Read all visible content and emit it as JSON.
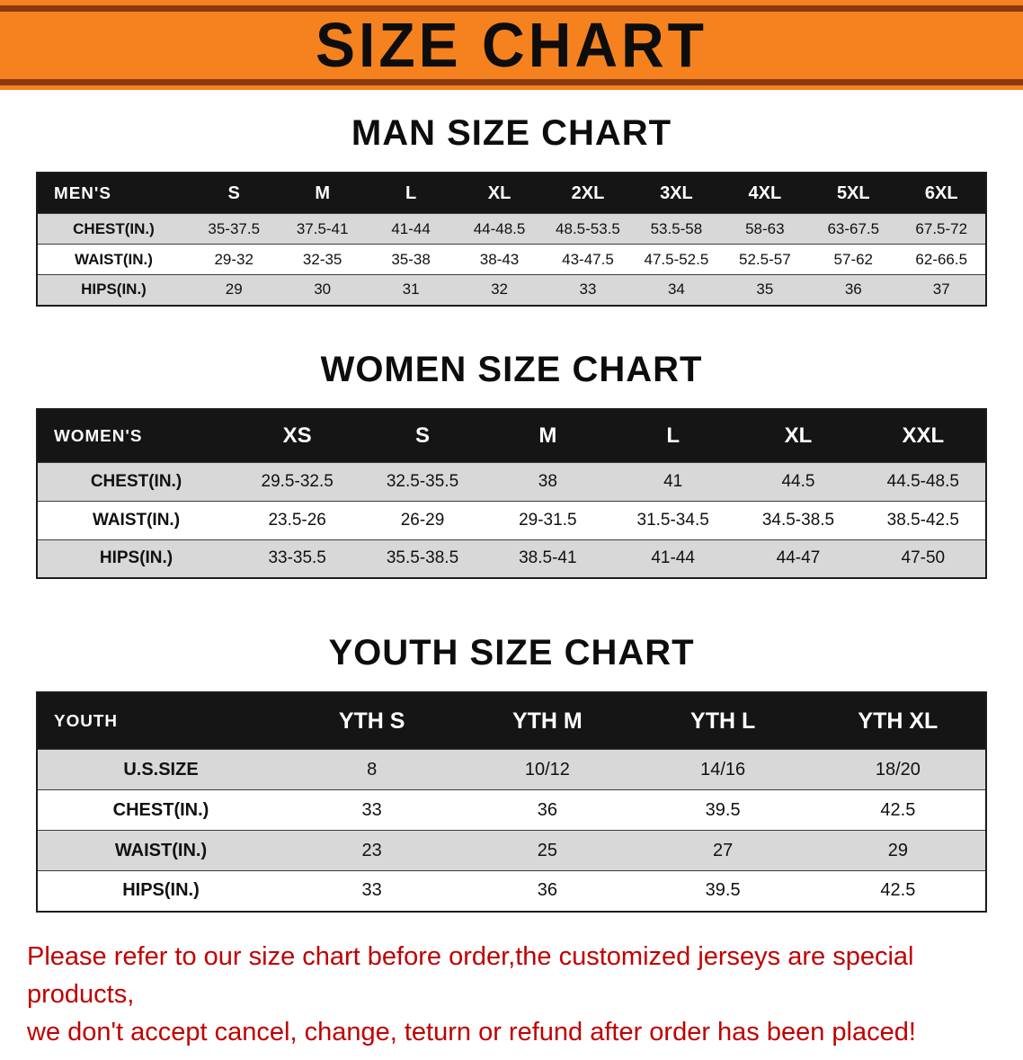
{
  "banner": {
    "title": "SIZE CHART"
  },
  "sections": [
    {
      "id": "men",
      "heading": "MAN SIZE CHART",
      "table": {
        "header": [
          "MEN'S",
          "S",
          "M",
          "L",
          "XL",
          "2XL",
          "3XL",
          "4XL",
          "5XL",
          "6XL"
        ],
        "rows": [
          [
            "CHEST(IN.)",
            "35-37.5",
            "37.5-41",
            "41-44",
            "44-48.5",
            "48.5-53.5",
            "53.5-58",
            "58-63",
            "63-67.5",
            "67.5-72"
          ],
          [
            "WAIST(IN.)",
            "29-32",
            "32-35",
            "35-38",
            "38-43",
            "43-47.5",
            "47.5-52.5",
            "52.5-57",
            "57-62",
            "62-66.5"
          ],
          [
            "HIPS(IN.)",
            "29",
            "30",
            "31",
            "32",
            "33",
            "34",
            "35",
            "36",
            "37"
          ]
        ]
      }
    },
    {
      "id": "women",
      "heading": "WOMEN SIZE CHART",
      "table": {
        "header": [
          "WOMEN'S",
          "XS",
          "S",
          "M",
          "L",
          "XL",
          "XXL"
        ],
        "rows": [
          [
            "CHEST(IN.)",
            "29.5-32.5",
            "32.5-35.5",
            "38",
            "41",
            "44.5",
            "44.5-48.5"
          ],
          [
            "WAIST(IN.)",
            "23.5-26",
            "26-29",
            "29-31.5",
            "31.5-34.5",
            "34.5-38.5",
            "38.5-42.5"
          ],
          [
            "HIPS(IN.)",
            "33-35.5",
            "35.5-38.5",
            "38.5-41",
            "41-44",
            "44-47",
            "47-50"
          ]
        ]
      }
    },
    {
      "id": "youth",
      "heading": "YOUTH SIZE CHART",
      "table": {
        "header": [
          "YOUTH",
          "YTH S",
          "YTH M",
          "YTH L",
          "YTH XL"
        ],
        "rows": [
          [
            "U.S.SIZE",
            "8",
            "10/12",
            "14/16",
            "18/20"
          ],
          [
            "CHEST(IN.)",
            "33",
            "36",
            "39.5",
            "42.5"
          ],
          [
            "WAIST(IN.)",
            "23",
            "25",
            "27",
            "29"
          ],
          [
            "HIPS(IN.)",
            "33",
            "36",
            "39.5",
            "42.5"
          ]
        ]
      }
    }
  ],
  "notice": {
    "line1": "Please refer to our size chart before order,the customized jerseys are special products,",
    "line2": "we don't accept cancel, change, teturn or refund after order has been placed!"
  },
  "colors": {
    "banner_orange": "#F5821E",
    "banner_edge": "#8A3A12",
    "header_black": "#151515",
    "row_gray": "#D8D8D8",
    "notice_red": "#C00000"
  }
}
